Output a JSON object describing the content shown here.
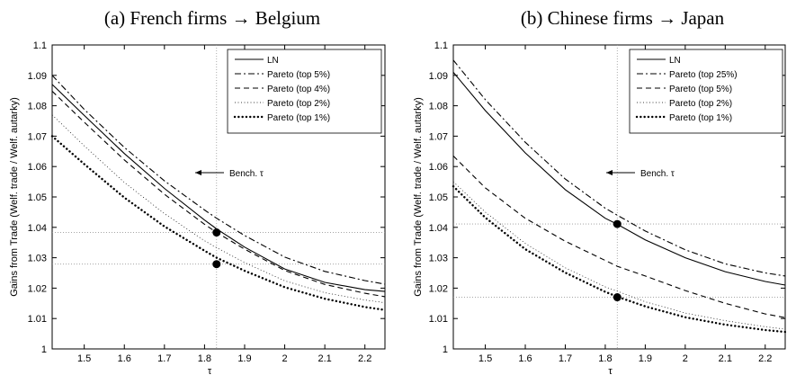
{
  "chart_data": [
    {
      "type": "line",
      "title": "(a) French firms → Belgium",
      "xlabel": "τ",
      "ylabel": "Gains from Trade (Welf. trade / Welf. autarky)",
      "xlim": [
        1.42,
        2.25
      ],
      "ylim": [
        1.0,
        1.1
      ],
      "xticks": [
        "1.5",
        "1.6",
        "1.7",
        "1.8",
        "1.9",
        "2",
        "2.1",
        "2.2"
      ],
      "yticks": [
        "1",
        "1.01",
        "1.02",
        "1.03",
        "1.04",
        "1.05",
        "1.06",
        "1.07",
        "1.08",
        "1.09",
        "1.1"
      ],
      "grid": false,
      "legend_position": "top-right",
      "annotation": "Bench. τ",
      "benchmark_x": 1.83,
      "series": [
        {
          "name": "LN",
          "style": "solid",
          "x": [
            1.42,
            1.5,
            1.6,
            1.7,
            1.8,
            1.83,
            1.9,
            2.0,
            2.1,
            2.2,
            2.25
          ],
          "y": [
            1.087,
            1.0768,
            1.0643,
            1.0528,
            1.0424,
            1.0395,
            1.0335,
            1.0263,
            1.0219,
            1.0195,
            1.0189
          ]
        },
        {
          "name": "Pareto (top 5%)",
          "style": "dashdot",
          "x": [
            1.42,
            1.5,
            1.6,
            1.7,
            1.8,
            1.83,
            1.9,
            2.0,
            2.1,
            2.2,
            2.25
          ],
          "y": [
            1.09,
            1.0788,
            1.0663,
            1.0553,
            1.0457,
            1.043,
            1.0373,
            1.0302,
            1.0255,
            1.0225,
            1.0213
          ]
        },
        {
          "name": "Pareto (top 4%)",
          "style": "dashed",
          "x": [
            1.42,
            1.5,
            1.6,
            1.7,
            1.8,
            1.83,
            1.9,
            2.0,
            2.1,
            2.2,
            2.25
          ],
          "y": [
            1.0848,
            1.0746,
            1.0622,
            1.0509,
            1.041,
            1.0383,
            1.0328,
            1.0258,
            1.0212,
            1.0183,
            1.0172
          ]
        },
        {
          "name": "Pareto (top 2%)",
          "style": "dotted",
          "x": [
            1.42,
            1.5,
            1.6,
            1.7,
            1.8,
            1.83,
            1.9,
            2.0,
            2.1,
            2.2,
            2.25
          ],
          "y": [
            1.077,
            1.0668,
            1.0548,
            1.0445,
            1.0356,
            1.0333,
            1.0284,
            1.0224,
            1.0185,
            1.0161,
            1.0152
          ]
        },
        {
          "name": "Pareto (top 1%)",
          "style": "dotmarker",
          "x": [
            1.42,
            1.5,
            1.6,
            1.7,
            1.8,
            1.83,
            1.9,
            2.0,
            2.1,
            2.2,
            2.25
          ],
          "y": [
            1.07,
            1.0608,
            1.0498,
            1.0403,
            1.0323,
            1.03,
            1.0257,
            1.0203,
            1.0165,
            1.0138,
            1.0128
          ]
        }
      ],
      "markers": [
        {
          "x": 1.83,
          "y": 1.0383
        },
        {
          "x": 1.83,
          "y": 1.0279
        }
      ]
    },
    {
      "type": "line",
      "title": "(b) Chinese firms → Japan",
      "xlabel": "τ",
      "ylabel": "Gains from Trade (Welf. trade / Welf. autarky)",
      "xlim": [
        1.42,
        2.25
      ],
      "ylim": [
        1.0,
        1.1
      ],
      "xticks": [
        "1.5",
        "1.6",
        "1.7",
        "1.8",
        "1.9",
        "2",
        "2.1",
        "2.2"
      ],
      "yticks": [
        "1",
        "1.01",
        "1.02",
        "1.03",
        "1.04",
        "1.05",
        "1.06",
        "1.07",
        "1.08",
        "1.09",
        "1.1"
      ],
      "grid": false,
      "legend_position": "top-right",
      "annotation": "Bench. τ",
      "benchmark_x": 1.83,
      "series": [
        {
          "name": "LN",
          "style": "solid",
          "x": [
            1.42,
            1.5,
            1.6,
            1.7,
            1.8,
            1.83,
            1.9,
            2.0,
            2.1,
            2.2,
            2.25
          ],
          "y": [
            1.091,
            1.0784,
            1.0645,
            1.0524,
            1.043,
            1.041,
            1.0359,
            1.03,
            1.0254,
            1.0222,
            1.021
          ]
        },
        {
          "name": "Pareto (top 25%)",
          "style": "dashdot",
          "x": [
            1.42,
            1.5,
            1.6,
            1.7,
            1.8,
            1.83,
            1.9,
            2.0,
            2.1,
            2.2,
            2.25
          ],
          "y": [
            1.095,
            1.082,
            1.068,
            1.0559,
            1.0463,
            1.044,
            1.0388,
            1.0326,
            1.028,
            1.025,
            1.024
          ]
        },
        {
          "name": "Pareto (top 5%)",
          "style": "dashed",
          "x": [
            1.42,
            1.5,
            1.6,
            1.7,
            1.8,
            1.83,
            1.9,
            2.0,
            2.1,
            2.2,
            2.25
          ],
          "y": [
            1.0635,
            1.053,
            1.043,
            1.0354,
            1.0291,
            1.0272,
            1.024,
            1.0192,
            1.015,
            1.0115,
            1.0103
          ]
        },
        {
          "name": "Pareto (top 2%)",
          "style": "dotted",
          "x": [
            1.42,
            1.5,
            1.6,
            1.7,
            1.8,
            1.83,
            1.9,
            2.0,
            2.1,
            2.2,
            2.25
          ],
          "y": [
            1.055,
            1.045,
            1.0347,
            1.0267,
            1.0204,
            1.019,
            1.0155,
            1.0118,
            1.0093,
            1.0073,
            1.0065
          ]
        },
        {
          "name": "Pareto (top 1%)",
          "style": "dotmarker",
          "x": [
            1.42,
            1.5,
            1.6,
            1.7,
            1.8,
            1.83,
            1.9,
            2.0,
            2.1,
            2.2,
            2.25
          ],
          "y": [
            1.0535,
            1.0432,
            1.0328,
            1.0251,
            1.0188,
            1.0172,
            1.014,
            1.0104,
            1.008,
            1.0062,
            1.0056
          ]
        }
      ],
      "markers": [
        {
          "x": 1.83,
          "y": 1.0411
        },
        {
          "x": 1.83,
          "y": 1.017
        }
      ]
    }
  ]
}
